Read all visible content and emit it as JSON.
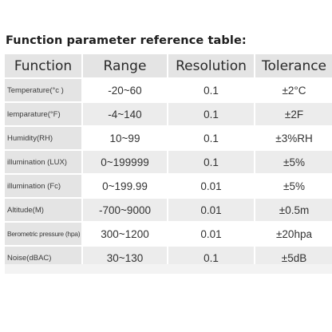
{
  "title": "Function parameter reference table:",
  "headers": [
    "Function",
    "Range",
    "Resolution",
    "Tolerance"
  ],
  "rows": [
    {
      "function": "Temperature(°c )",
      "range": "-20~60",
      "resolution": "0.1",
      "tolerance": "±2°C"
    },
    {
      "function": "lemparature(°F)",
      "range": "-4~140",
      "resolution": "0.1",
      "tolerance": "±2F"
    },
    {
      "function": "Humidity(RH)",
      "range": "10~99",
      "resolution": "0.1",
      "tolerance": "±3%RH"
    },
    {
      "function": "illumination (LUX)",
      "range": "0~199999",
      "resolution": "0.1",
      "tolerance": "±5%"
    },
    {
      "function": "illumination (Fc)",
      "range": "0~199.99",
      "resolution": "0.01",
      "tolerance": "±5%"
    },
    {
      "function": "Altitude(M)",
      "range": "-700~9000",
      "resolution": "0.01",
      "tolerance": "±0.5m"
    },
    {
      "function": "Berometric pressure (hpa)",
      "range": "300~1200",
      "resolution": "0.01",
      "tolerance": "±20hpa"
    },
    {
      "function": "Noise(dBAC)",
      "range": "30~130",
      "resolution": "0.1",
      "tolerance": "±5dB"
    }
  ]
}
